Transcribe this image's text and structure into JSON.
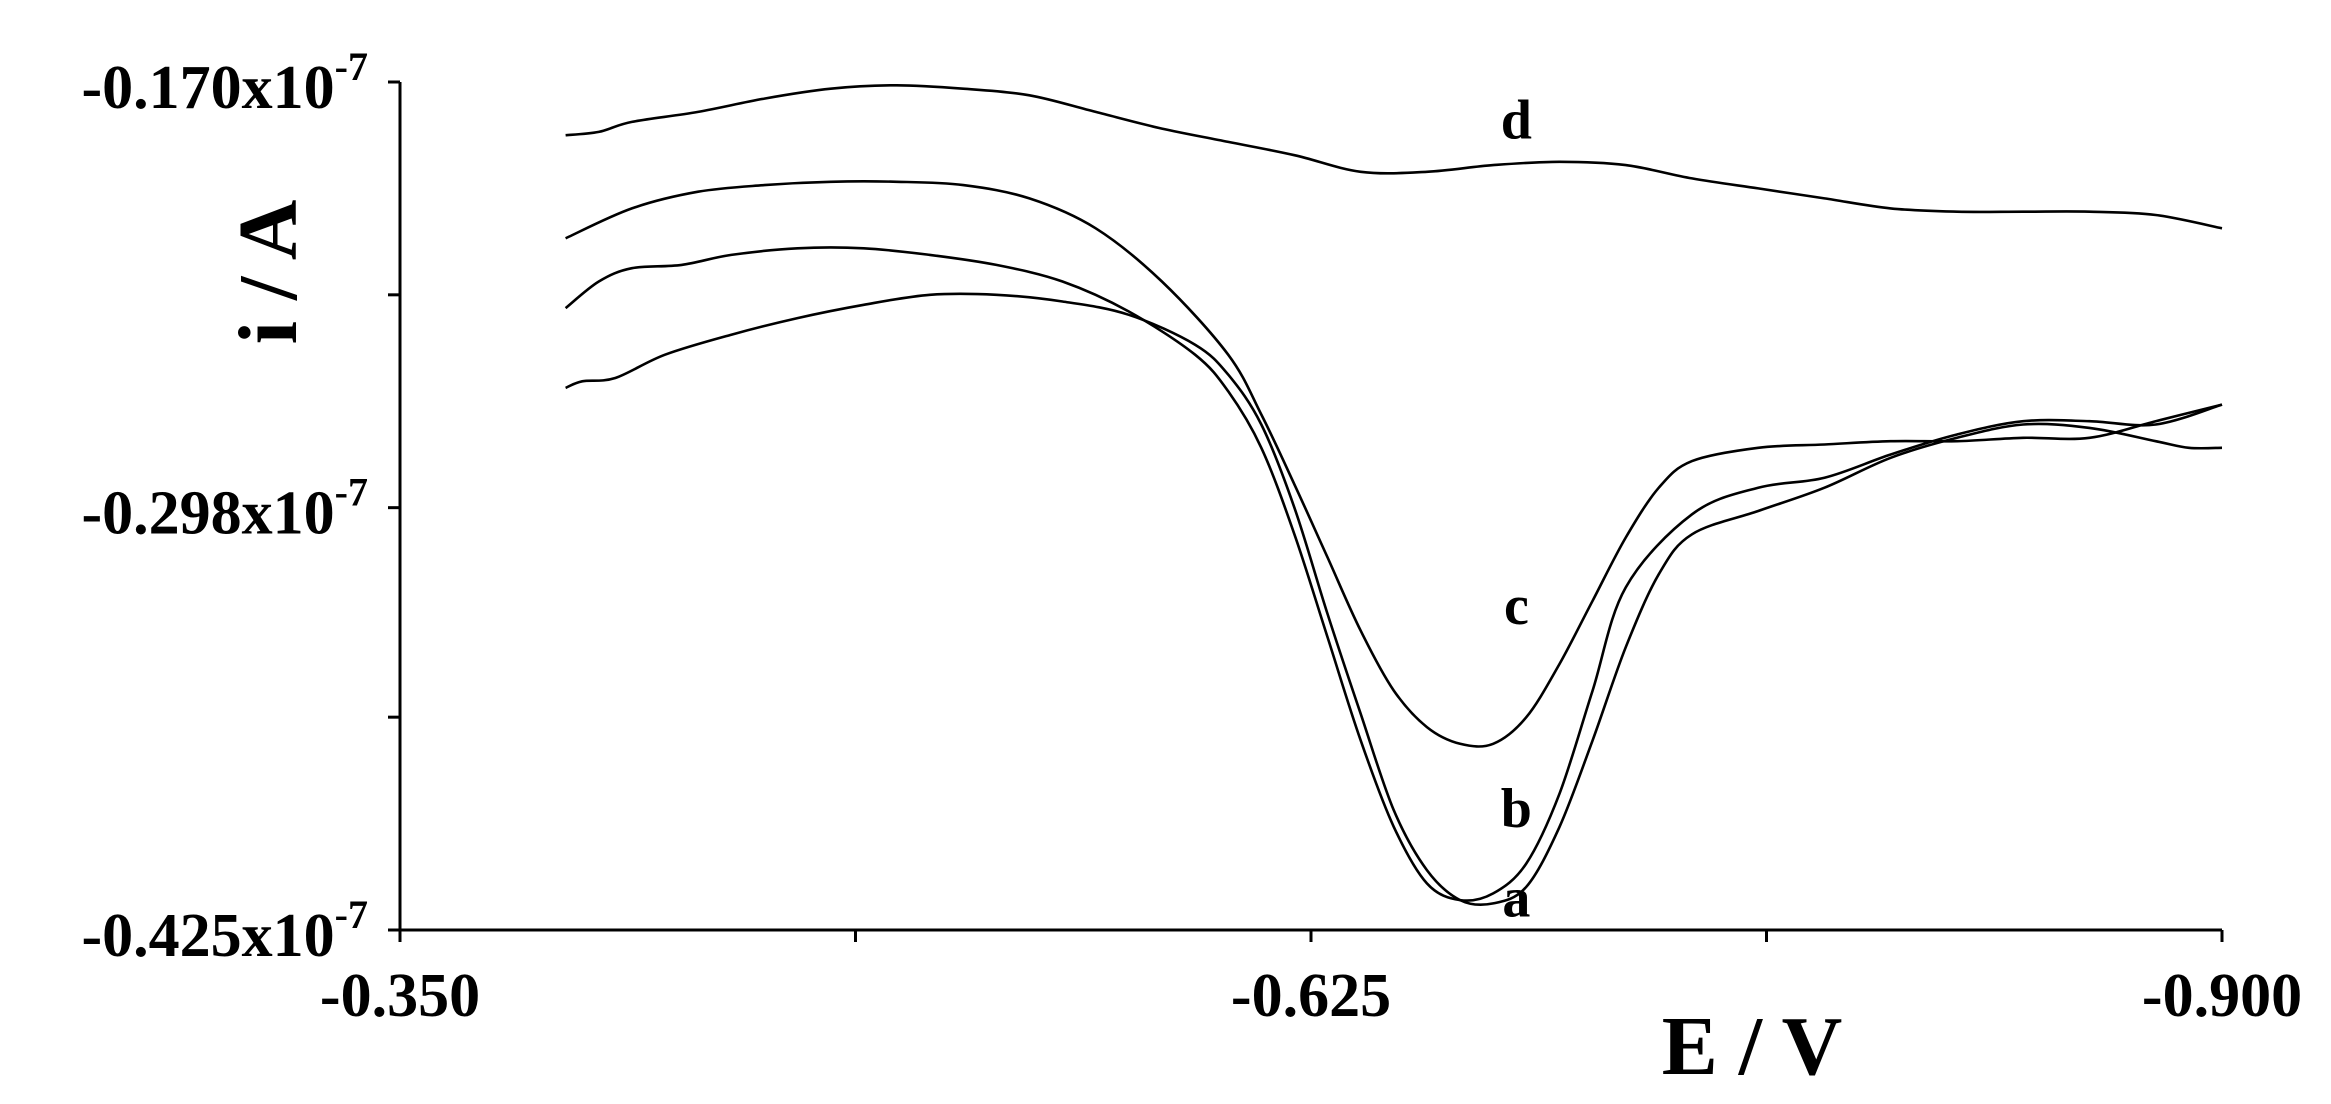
{
  "chart_data": {
    "type": "line",
    "xlabel": "E / V",
    "ylabel": "i / A",
    "xlim": [
      -0.35,
      -0.9
    ],
    "ylim": [
      -0.425,
      -0.17
    ],
    "y_unit_suffix": "x10",
    "y_unit_exponent": "-7",
    "x_ticks": [
      {
        "value": -0.35,
        "label": "-0.350"
      },
      {
        "value": -0.4875,
        "label": ""
      },
      {
        "value": -0.625,
        "label": "-0.625"
      },
      {
        "value": -0.7625,
        "label": ""
      },
      {
        "value": -0.9,
        "label": "-0.900"
      }
    ],
    "y_ticks": [
      {
        "value": -0.17,
        "label": "-0.170"
      },
      {
        "value": -0.234,
        "label": ""
      },
      {
        "value": -0.298,
        "label": "-0.298"
      },
      {
        "value": -0.361,
        "label": ""
      },
      {
        "value": -0.425,
        "label": "-0.425"
      }
    ],
    "grid": false,
    "series": [
      {
        "name": "a",
        "label_at": [
          -0.687,
          -0.421
        ],
        "x": [
          -0.4,
          -0.405,
          -0.415,
          -0.43,
          -0.45,
          -0.47,
          -0.49,
          -0.51,
          -0.53,
          -0.55,
          -0.57,
          -0.59,
          -0.6,
          -0.61,
          -0.62,
          -0.63,
          -0.64,
          -0.65,
          -0.66,
          -0.67,
          -0.68,
          -0.69,
          -0.7,
          -0.71,
          -0.72,
          -0.73,
          -0.74,
          -0.76,
          -0.78,
          -0.8,
          -0.82,
          -0.84,
          -0.86,
          -0.88,
          -0.89,
          -0.9
        ],
        "y": [
          -0.262,
          -0.26,
          -0.259,
          -0.252,
          -0.246,
          -0.241,
          -0.237,
          -0.234,
          -0.234,
          -0.236,
          -0.24,
          -0.249,
          -0.258,
          -0.273,
          -0.298,
          -0.33,
          -0.36,
          -0.389,
          -0.407,
          -0.416,
          -0.417,
          -0.412,
          -0.394,
          -0.368,
          -0.34,
          -0.318,
          -0.306,
          -0.299,
          -0.292,
          -0.283,
          -0.277,
          -0.273,
          -0.274,
          -0.278,
          -0.28,
          -0.28
        ]
      },
      {
        "name": "b",
        "label_at": [
          -0.687,
          -0.394
        ],
        "x": [
          -0.4,
          -0.41,
          -0.42,
          -0.435,
          -0.45,
          -0.47,
          -0.49,
          -0.51,
          -0.53,
          -0.55,
          -0.57,
          -0.59,
          -0.6,
          -0.61,
          -0.62,
          -0.63,
          -0.64,
          -0.65,
          -0.66,
          -0.67,
          -0.68,
          -0.69,
          -0.7,
          -0.71,
          -0.72,
          -0.74,
          -0.76,
          -0.78,
          -0.8,
          -0.82,
          -0.84,
          -0.86,
          -0.88,
          -0.9
        ],
        "y": [
          -0.238,
          -0.23,
          -0.226,
          -0.225,
          -0.222,
          -0.22,
          -0.22,
          -0.222,
          -0.225,
          -0.23,
          -0.239,
          -0.252,
          -0.263,
          -0.28,
          -0.306,
          -0.337,
          -0.368,
          -0.394,
          -0.411,
          -0.416,
          -0.414,
          -0.405,
          -0.384,
          -0.353,
          -0.322,
          -0.3,
          -0.292,
          -0.289,
          -0.282,
          -0.276,
          -0.272,
          -0.272,
          -0.273,
          -0.267
        ]
      },
      {
        "name": "c",
        "label_at": [
          -0.687,
          -0.333
        ],
        "x": [
          -0.4,
          -0.42,
          -0.44,
          -0.46,
          -0.48,
          -0.5,
          -0.52,
          -0.54,
          -0.56,
          -0.58,
          -0.6,
          -0.61,
          -0.62,
          -0.63,
          -0.64,
          -0.65,
          -0.66,
          -0.67,
          -0.68,
          -0.69,
          -0.7,
          -0.71,
          -0.72,
          -0.73,
          -0.74,
          -0.76,
          -0.78,
          -0.8,
          -0.82,
          -0.84,
          -0.86,
          -0.88,
          -0.9
        ],
        "y": [
          -0.217,
          -0.208,
          -0.203,
          -0.201,
          -0.2,
          -0.2,
          -0.201,
          -0.205,
          -0.214,
          -0.23,
          -0.252,
          -0.27,
          -0.291,
          -0.313,
          -0.335,
          -0.353,
          -0.364,
          -0.369,
          -0.369,
          -0.361,
          -0.345,
          -0.326,
          -0.307,
          -0.292,
          -0.284,
          -0.28,
          -0.279,
          -0.278,
          -0.278,
          -0.277,
          -0.277,
          -0.272,
          -0.267
        ]
      },
      {
        "name": "d",
        "label_at": [
          -0.687,
          -0.187
        ],
        "x": [
          -0.4,
          -0.41,
          -0.42,
          -0.44,
          -0.46,
          -0.48,
          -0.5,
          -0.52,
          -0.54,
          -0.56,
          -0.58,
          -0.6,
          -0.62,
          -0.64,
          -0.66,
          -0.68,
          -0.7,
          -0.72,
          -0.74,
          -0.76,
          -0.78,
          -0.8,
          -0.82,
          -0.84,
          -0.86,
          -0.88,
          -0.9
        ],
        "y": [
          -0.186,
          -0.185,
          -0.182,
          -0.179,
          -0.175,
          -0.172,
          -0.171,
          -0.172,
          -0.174,
          -0.179,
          -0.184,
          -0.188,
          -0.192,
          -0.197,
          -0.197,
          -0.195,
          -0.194,
          -0.195,
          -0.199,
          -0.202,
          -0.205,
          -0.208,
          -0.209,
          -0.209,
          -0.209,
          -0.21,
          -0.214
        ]
      }
    ]
  }
}
